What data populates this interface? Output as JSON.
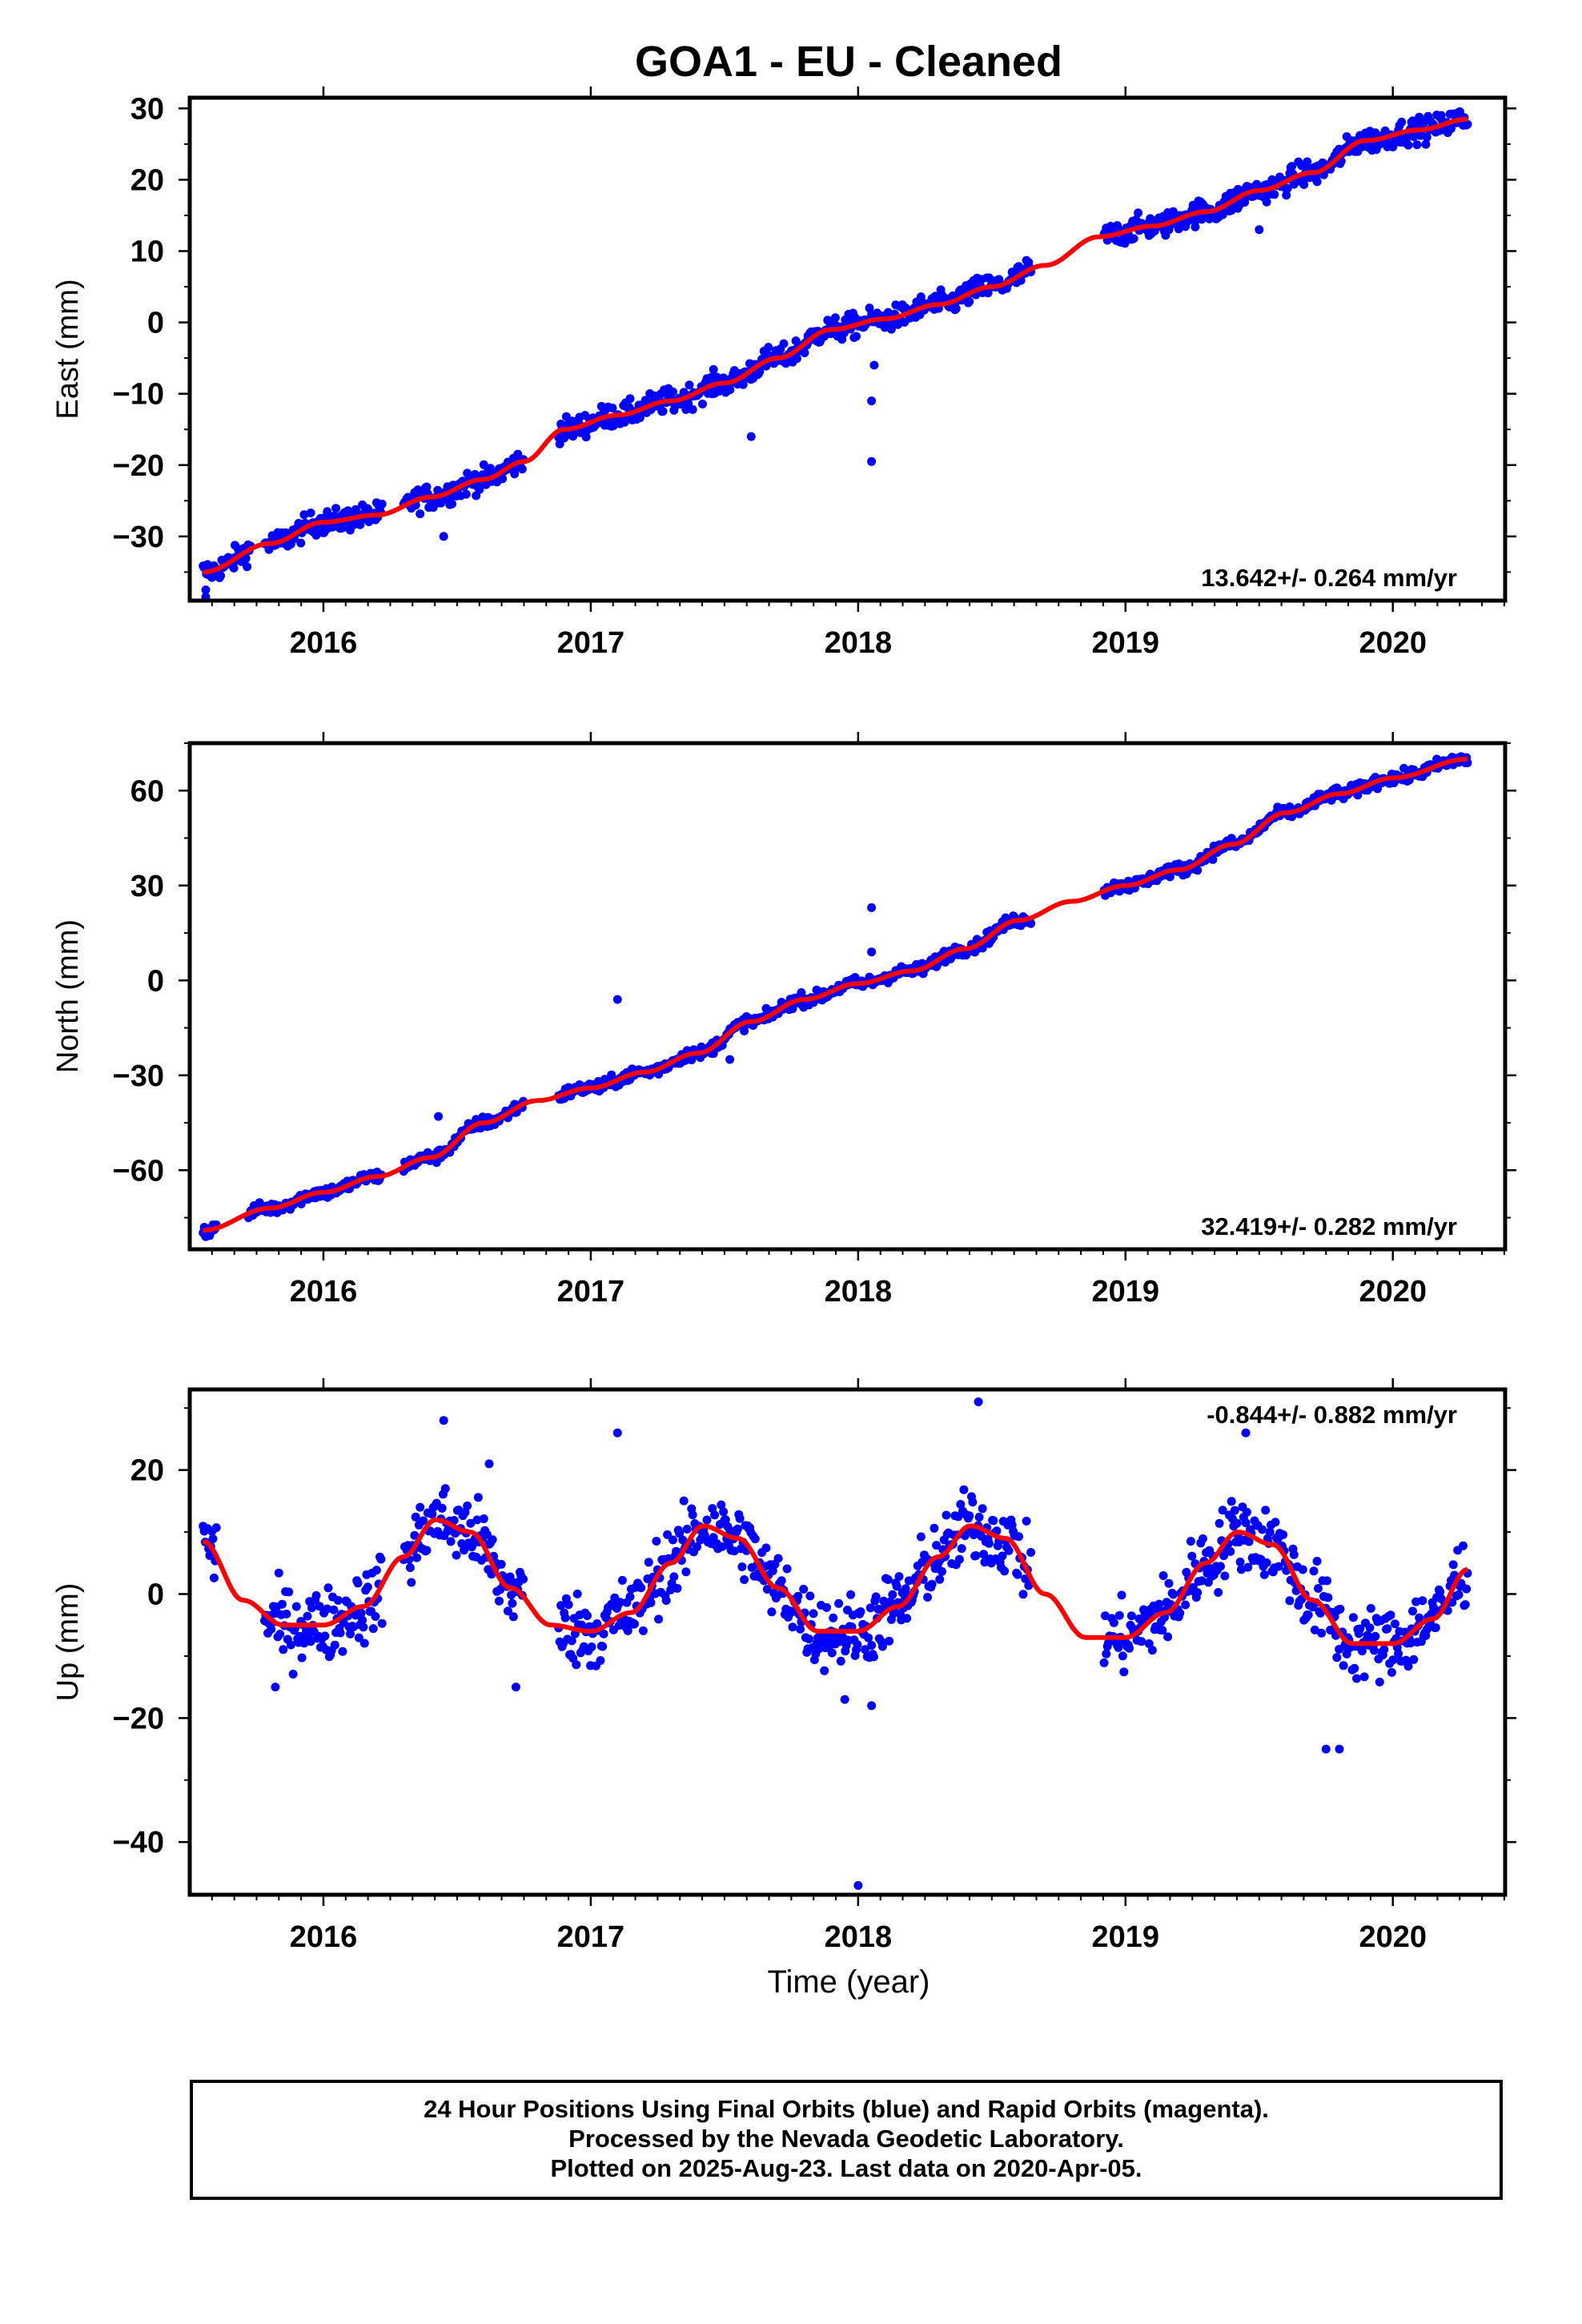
{
  "title": "GOA1  - EU - Cleaned",
  "xlabel": "Time (year)",
  "footer": {
    "line1": "24 Hour Positions Using Final Orbits (blue) and Rapid Orbits (magenta).",
    "line2": "Processed by the Nevada Geodetic Laboratory.",
    "line3": "Plotted on 2025-Aug-23. Last data on 2020-Apr-05."
  },
  "colors": {
    "points": "#0000ff",
    "fit": "#ff0000",
    "axes": "#000000"
  },
  "chart_data": [
    {
      "type": "scatter",
      "component": "east",
      "ylabel": "East (mm)",
      "xlim": [
        2015.5,
        2020.42
      ],
      "ylim": [
        -39,
        31.5
      ],
      "xticks": [
        2016,
        2017,
        2018,
        2019,
        2020
      ],
      "yticks": [
        -30,
        -20,
        -10,
        0,
        10,
        20,
        30
      ],
      "rate_label": "13.642+/- 0.264 mm/yr",
      "rate_position": "bottom-right",
      "series": [
        {
          "kind": "points",
          "segments": [
            [
              2015.55,
              2015.73
            ],
            [
              2015.78,
              2016.22
            ],
            [
              2016.3,
              2016.75
            ],
            [
              2016.88,
              2018.65
            ],
            [
              2018.92,
              2020.28
            ]
          ],
          "noise": 1.2,
          "outliers": [
            [
              2015.56,
              -37.5
            ],
            [
              2015.56,
              -38.5
            ],
            [
              2016.45,
              -30
            ],
            [
              2017.6,
              -16
            ],
            [
              2018.05,
              -11
            ],
            [
              2018.05,
              -19.5
            ],
            [
              2018.06,
              -6
            ],
            [
              2019.5,
              13
            ],
            [
              2019.42,
              16
            ]
          ]
        },
        {
          "kind": "fit",
          "x": [
            2015.55,
            2015.8,
            2016.0,
            2016.2,
            2016.4,
            2016.6,
            2016.75,
            2016.9,
            2017.1,
            2017.3,
            2017.5,
            2017.7,
            2017.9,
            2018.1,
            2018.3,
            2018.5,
            2018.7,
            2018.9,
            2019.1,
            2019.3,
            2019.5,
            2019.7,
            2019.9,
            2020.1,
            2020.28
          ],
          "y": [
            -35,
            -31,
            -28,
            -27,
            -24.5,
            -22,
            -19.5,
            -15,
            -13,
            -11,
            -8.5,
            -5,
            -1,
            0.5,
            2.5,
            5,
            8,
            12,
            13.5,
            15.5,
            18.5,
            21,
            25.5,
            27,
            28.5
          ]
        }
      ]
    },
    {
      "type": "scatter",
      "component": "north",
      "ylabel": "North (mm)",
      "xlim": [
        2015.5,
        2020.42
      ],
      "ylim": [
        -85,
        75
      ],
      "xticks": [
        2016,
        2017,
        2018,
        2019,
        2020
      ],
      "yticks": [
        -60,
        -30,
        0,
        30,
        60
      ],
      "rate_label": "32.419+/- 0.282 mm/yr",
      "rate_position": "bottom-right",
      "series": [
        {
          "kind": "points",
          "segments": [
            [
              2015.55,
              2015.6
            ],
            [
              2015.72,
              2016.22
            ],
            [
              2016.3,
              2016.75
            ],
            [
              2016.88,
              2018.65
            ],
            [
              2018.92,
              2020.28
            ]
          ],
          "noise": 1.4,
          "outliers": [
            [
              2015.56,
              -81
            ],
            [
              2016.43,
              -43
            ],
            [
              2017.1,
              -6
            ],
            [
              2018.05,
              23
            ],
            [
              2018.05,
              9
            ],
            [
              2017.52,
              -25
            ]
          ]
        },
        {
          "kind": "fit",
          "x": [
            2015.55,
            2015.8,
            2016.0,
            2016.2,
            2016.4,
            2016.6,
            2016.8,
            2017.0,
            2017.2,
            2017.4,
            2017.6,
            2017.8,
            2018.0,
            2018.2,
            2018.4,
            2018.6,
            2018.8,
            2019.0,
            2019.2,
            2019.4,
            2019.6,
            2019.8,
            2020.0,
            2020.28
          ],
          "y": [
            -79,
            -72,
            -67,
            -62,
            -56,
            -45,
            -38,
            -34,
            -29,
            -23,
            -13,
            -6,
            -1,
            3,
            10,
            19,
            25,
            30,
            35,
            43,
            53,
            59,
            64,
            70
          ]
        }
      ]
    },
    {
      "type": "scatter",
      "component": "up",
      "ylabel": "Up (mm)",
      "xlim": [
        2015.5,
        2020.42
      ],
      "ylim": [
        -48.5,
        33
      ],
      "xticks": [
        2016,
        2017,
        2018,
        2019,
        2020
      ],
      "yticks": [
        -40,
        -20,
        0,
        20
      ],
      "rate_label": "-0.844+/- 0.882 mm/yr",
      "rate_position": "top-right",
      "series": [
        {
          "kind": "points",
          "segments": [
            [
              2015.55,
              2015.6
            ],
            [
              2015.78,
              2016.22
            ],
            [
              2016.3,
              2016.75
            ],
            [
              2016.88,
              2018.65
            ],
            [
              2018.92,
              2020.28
            ]
          ],
          "noise": 4.2,
          "outliers": [
            [
              2016.45,
              28
            ],
            [
              2017.1,
              26
            ],
            [
              2018.45,
              31
            ],
            [
              2018.0,
              -47
            ],
            [
              2019.45,
              26
            ],
            [
              2019.75,
              -25
            ],
            [
              2019.8,
              -25
            ],
            [
              2017.95,
              -17
            ],
            [
              2018.05,
              -18
            ],
            [
              2015.82,
              -15
            ],
            [
              2016.72,
              -15
            ],
            [
              2016.62,
              21
            ]
          ]
        },
        {
          "kind": "fit",
          "x": [
            2015.55,
            2015.7,
            2015.85,
            2016.0,
            2016.15,
            2016.3,
            2016.42,
            2016.55,
            2016.7,
            2016.85,
            2017.0,
            2017.15,
            2017.3,
            2017.42,
            2017.55,
            2017.7,
            2017.85,
            2018.0,
            2018.15,
            2018.3,
            2018.42,
            2018.55,
            2018.7,
            2018.85,
            2019.0,
            2019.15,
            2019.3,
            2019.42,
            2019.55,
            2019.7,
            2019.85,
            2020.0,
            2020.15,
            2020.28
          ],
          "y": [
            8.5,
            -1,
            -5,
            -5,
            -2,
            6,
            12,
            10,
            1,
            -5,
            -6,
            -3,
            5,
            11,
            9,
            1,
            -6,
            -6,
            -2,
            6,
            11,
            9,
            0,
            -7,
            -7,
            -3,
            5,
            10,
            8,
            -1,
            -8,
            -8,
            -4,
            4
          ]
        }
      ]
    }
  ]
}
